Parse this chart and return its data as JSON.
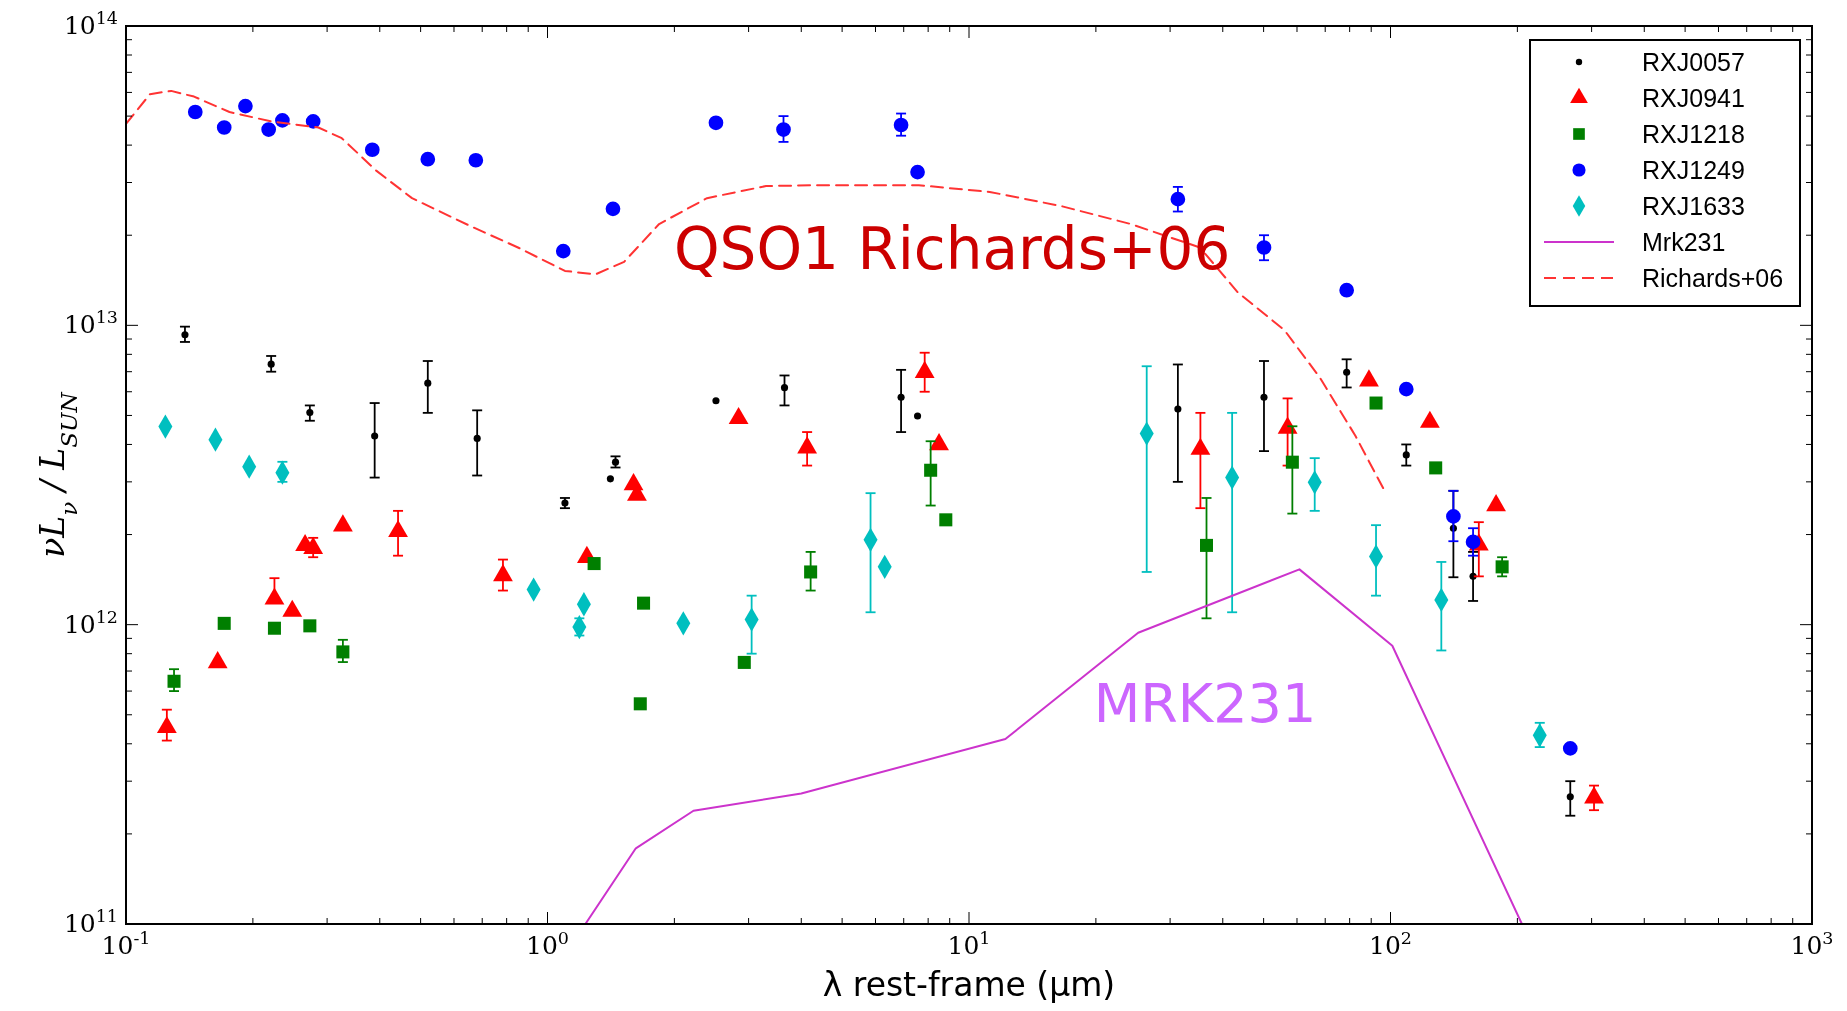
{
  "chart_data": {
    "type": "scatter",
    "xlabel": "λ rest-frame (μm)",
    "ylabel": "νL$_{ν}$ / L$_{SUN}$",
    "log": "xy",
    "grid": false,
    "legend": "top right",
    "xlim": [
      0.1,
      1000
    ],
    "xticks": [
      {
        "value": 0.1,
        "label": "10$^{-1}$"
      },
      {
        "value": 1,
        "label": "10$^{0}$"
      },
      {
        "value": 10,
        "label": "10$^{1}$"
      },
      {
        "value": 100,
        "label": "10$^{2}$"
      },
      {
        "value": 1000,
        "label": "10$^{3}$"
      }
    ],
    "ylim": [
      100000000000.0,
      100000000000000.0
    ],
    "yticks": [
      {
        "value": 100000000000.0,
        "label": "10$^{11}$"
      },
      {
        "value": 1000000000000.0,
        "label": "10$^{12}$"
      },
      {
        "value": 10000000000000.0,
        "label": "10$^{13}$"
      },
      {
        "value": 100000000000000.0,
        "label": "10$^{14}$"
      }
    ],
    "annotations": [
      "QSO1 Richards+06",
      "MRK231"
    ],
    "series": [
      {
        "name": "RXJ0057",
        "color": "#000000",
        "marker": "circle",
        "x": [
          0.138,
          0.221,
          0.273,
          0.389,
          0.52,
          0.681,
          1.1,
          1.45,
          1.41,
          2.51,
          3.65,
          6.9,
          7.55,
          31.3,
          50.1,
          78.7,
          109,
          141,
          157,
          267
        ],
        "values": [
          9300000000000.0,
          7420000000000.0,
          5110000000000.0,
          4270000000000.0,
          6410000000000.0,
          4190000000000.0,
          2550000000000.0,
          3490000000000.0,
          3070000000000.0,
          5600000000000.0,
          6190000000000.0,
          5750000000000.0,
          4980000000000.0,
          5250000000000.0,
          5750000000000.0,
          6970000000000.0,
          3690000000000.0,
          2100000000000.0,
          1450000000000.0,
          266000000000.0
        ],
        "errors": [
          [
            8800000000000.0,
            9900000000000.0
          ],
          [
            7000000000000.0,
            7900000000000.0
          ],
          [
            4800000000000.0,
            5400000000000.0
          ],
          [
            3100000000000.0,
            5500000000000.0
          ],
          [
            5100000000000.0,
            7600000000000.0
          ],
          [
            3150000000000.0,
            5200000000000.0
          ],
          [
            2450000000000.0,
            2650000000000.0
          ],
          [
            3350000000000.0,
            3650000000000.0
          ],
          null,
          null,
          [
            5400000000000.0,
            6800000000000.0
          ],
          [
            4400000000000.0,
            7100000000000.0
          ],
          null,
          [
            3000000000000.0,
            7400000000000.0
          ],
          [
            3800000000000.0,
            7600000000000.0
          ],
          [
            6200000000000.0,
            7700000000000.0
          ],
          [
            3400000000000.0,
            4000000000000.0
          ],
          [
            1440000000000.0,
            2800000000000.0
          ],
          [
            1200000000000.0,
            1750000000000.0
          ],
          [
            230000000000.0,
            300000000000.0
          ]
        ]
      },
      {
        "name": "RXJ0941",
        "color": "#ff0000",
        "marker": "triangle",
        "x": [
          0.125,
          0.165,
          0.225,
          0.248,
          0.266,
          0.278,
          0.327,
          0.442,
          0.784,
          1.24,
          1.6,
          1.63,
          2.84,
          4.13,
          7.85,
          8.49,
          35.4,
          57.0,
          88.9,
          124,
          162,
          178,
          304
        ],
        "values": [
          454000000000.0,
          748000000000.0,
          1220000000000.0,
          1110000000000.0,
          1840000000000.0,
          1800000000000.0,
          2140000000000.0,
          2050000000000.0,
          1460000000000.0,
          1680000000000.0,
          2940000000000.0,
          2710000000000.0,
          4890000000000.0,
          3900000000000.0,
          6970000000000.0,
          4000000000000.0,
          3860000000000.0,
          4540000000000.0,
          6530000000000.0,
          4750000000000.0,
          1850000000000.0,
          2500000000000.0,
          264000000000.0
        ],
        "errors": [
          [
            410000000000.0,
            520000000000.0
          ],
          null,
          [
            1220000000000.0,
            1430000000000.0
          ],
          null,
          null,
          [
            1680000000000.0,
            1950000000000.0
          ],
          null,
          [
            1700000000000.0,
            2400000000000.0
          ],
          [
            1300000000000.0,
            1650000000000.0
          ],
          null,
          null,
          null,
          null,
          [
            3400000000000.0,
            4400000000000.0
          ],
          [
            6000000000000.0,
            8100000000000.0
          ],
          null,
          [
            2450000000000.0,
            5100000000000.0
          ],
          [
            3400000000000.0,
            5700000000000.0
          ],
          null,
          null,
          [
            1450000000000.0,
            2200000000000.0
          ],
          null,
          [
            240000000000.0,
            290000000000.0
          ]
        ]
      },
      {
        "name": "RXJ1218",
        "color": "#007f00",
        "marker": "square",
        "x": [
          0.13,
          0.171,
          0.225,
          0.273,
          0.327,
          1.29,
          1.69,
          1.66,
          2.93,
          4.21,
          8.11,
          8.81,
          36.6,
          58.5,
          92.4,
          128,
          184
        ],
        "values": [
          647000000000.0,
          1010000000000.0,
          973000000000.0,
          991000000000.0,
          811000000000.0,
          1600000000000.0,
          1180000000000.0,
          544000000000.0,
          748000000000.0,
          1500000000000.0,
          3280000000000.0,
          2240000000000.0,
          1840000000000.0,
          3490000000000.0,
          5500000000000.0,
          3340000000000.0,
          1560000000000.0
        ],
        "errors": [
          [
            600000000000.0,
            710000000000.0
          ],
          null,
          null,
          null,
          [
            750000000000.0,
            890000000000.0
          ],
          null,
          null,
          null,
          null,
          [
            1300000000000.0,
            1750000000000.0
          ],
          [
            2500000000000.0,
            4100000000000.0
          ],
          null,
          [
            1050000000000.0,
            2650000000000.0
          ],
          [
            2350000000000.0,
            4600000000000.0
          ],
          null,
          null,
          [
            1450000000000.0,
            1680000000000.0
          ]
        ]
      },
      {
        "name": "RXJ1249",
        "color": "#0000ff",
        "marker": "circle",
        "x": [
          0.146,
          0.171,
          0.192,
          0.218,
          0.235,
          0.278,
          0.384,
          0.52,
          0.676,
          1.09,
          1.43,
          2.51,
          3.63,
          6.9,
          7.55,
          31.3,
          50.1,
          78.7,
          109,
          141,
          157,
          267
        ],
        "values": [
          51600000000000.0,
          45800000000000.0,
          54000000000000.0,
          45100000000000.0,
          48400000000000.0,
          48000000000000.0,
          38600000000000.0,
          35900000000000.0,
          35600000000000.0,
          17700000000000.0,
          24500000000000.0,
          47500000000000.0,
          45100000000000.0,
          46700000000000.0,
          32500000000000.0,
          26400000000000.0,
          18200000000000.0,
          13100000000000.0,
          6120000000000.0,
          2300000000000.0,
          1890000000000.0,
          386000000000.0
        ],
        "errors": [
          null,
          null,
          null,
          null,
          null,
          null,
          null,
          null,
          null,
          null,
          null,
          null,
          [
            41000000000000.0,
            50000000000000.0
          ],
          [
            43000000000000.0,
            51000000000000.0
          ],
          null,
          [
            24000000000000.0,
            29000000000000.0
          ],
          [
            16500000000000.0,
            20000000000000.0
          ],
          null,
          null,
          [
            1900000000000.0,
            2800000000000.0
          ],
          [
            1700000000000.0,
            2100000000000.0
          ],
          null
        ]
      },
      {
        "name": "RXJ1633",
        "color": "#00bfbf",
        "marker": "diamond",
        "x": [
          0.124,
          0.163,
          0.196,
          0.235,
          0.927,
          1.22,
          1.19,
          2.1,
          3.05,
          5.84,
          6.31,
          26.4,
          42.1,
          66.1,
          92.4,
          132,
          226
        ],
        "values": [
          4590000000000.0,
          4150000000000.0,
          3370000000000.0,
          3220000000000.0,
          1310000000000.0,
          1170000000000.0,
          982000000000.0,
          1010000000000.0,
          1040000000000.0,
          1920000000000.0,
          1560000000000.0,
          4350000000000.0,
          3100000000000.0,
          2990000000000.0,
          1690000000000.0,
          1210000000000.0,
          427000000000.0
        ],
        "errors": [
          null,
          null,
          null,
          [
            3000000000000.0,
            3500000000000.0
          ],
          null,
          null,
          [
            920000000000.0,
            1050000000000.0
          ],
          null,
          [
            800000000000.0,
            1250000000000.0
          ],
          [
            1100000000000.0,
            2750000000000.0
          ],
          null,
          [
            1500000000000.0,
            7300000000000.0
          ],
          [
            1100000000000.0,
            5100000000000.0
          ],
          [
            2400000000000.0,
            3600000000000.0
          ],
          [
            1250000000000.0,
            2150000000000.0
          ],
          [
            820000000000.0,
            1620000000000.0
          ],
          [
            390000000000.0,
            470000000000.0
          ]
        ]
      },
      {
        "name": "Mrk231",
        "color": "#cc33cc",
        "type": "line",
        "line_style": "solid",
        "x": [
          1.23,
          1.62,
          2.22,
          4.0,
          12.2,
          25.2,
          60.8,
          101,
          205
        ],
        "values": [
          100000000000.0,
          179000000000.0,
          239000000000.0,
          273000000000.0,
          415000000000.0,
          940000000000.0,
          1530000000000.0,
          850000000000.0,
          100000000000.0
        ]
      },
      {
        "name": "Richards+06",
        "color": "#ff3333",
        "type": "line",
        "line_style": "dashed",
        "x": [
          0.1,
          0.114,
          0.128,
          0.145,
          0.176,
          0.221,
          0.286,
          0.325,
          0.393,
          0.477,
          0.659,
          0.851,
          1.1,
          1.3,
          1.52,
          1.84,
          2.39,
          3.3,
          4.53,
          7.6,
          11.2,
          16.6,
          24.2,
          35.3,
          43.4,
          56.0,
          67.9,
          82.6,
          96.3
        ],
        "values": [
          47100000000000.0,
          59200000000000.0,
          60700000000000.0,
          58100000000000.0,
          51600000000000.0,
          48000000000000.0,
          45800000000000.0,
          42200000000000.0,
          32800000000000.0,
          26600000000000.0,
          21400000000000.0,
          18200000000000.0,
          15200000000000.0,
          14800000000000.0,
          16300000000000.0,
          21800000000000.0,
          26600000000000.0,
          29200000000000.0,
          29400000000000.0,
          29400000000000.0,
          27900000000000.0,
          25000000000000.0,
          21800000000000.0,
          18200000000000.0,
          12900000000000.0,
          9640000000000.0,
          6710000000000.0,
          4270000000000.0,
          2840000000000.0
        ]
      }
    ]
  }
}
